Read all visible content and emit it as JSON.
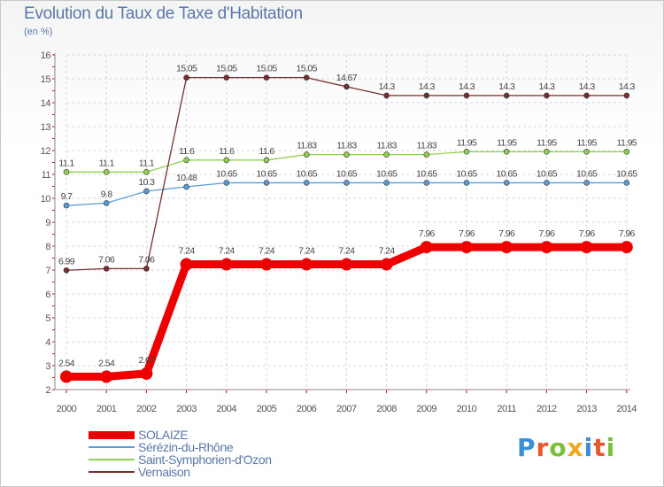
{
  "title": "Evolution du Taux de Taxe d'Habitation",
  "subtitle": "(en %)",
  "brand": {
    "letters": [
      {
        "ch": "P",
        "color": "#3a8fd6"
      },
      {
        "ch": "r",
        "color": "#e8562b"
      },
      {
        "ch": "o",
        "color": "#7cbf3a"
      },
      {
        "ch": "x",
        "color": "#f2a81d"
      },
      {
        "ch": "i",
        "color": "#3a8fd6"
      },
      {
        "ch": "t",
        "color": "#e8562b"
      },
      {
        "ch": "i",
        "color": "#7cbf3a"
      }
    ]
  },
  "chart_data": {
    "type": "line",
    "title": "Evolution du Taux de Taxe d'Habitation",
    "ylabel": "(en %)",
    "xlabel": "",
    "ylim": [
      2,
      16
    ],
    "yticks": [
      2,
      3,
      4,
      5,
      6,
      7,
      8,
      9,
      10,
      11,
      12,
      13,
      14,
      15,
      16
    ],
    "categories": [
      "2000",
      "2001",
      "2002",
      "2003",
      "2004",
      "2005",
      "2006",
      "2007",
      "2008",
      "2009",
      "2010",
      "2011",
      "2012",
      "2013",
      "2014"
    ],
    "grid": true,
    "legend_position": "bottom-left",
    "series": [
      {
        "name": "SOLAIZE",
        "color": "#ee0000",
        "style": "thick",
        "values": [
          2.54,
          2.54,
          2.67,
          7.24,
          7.24,
          7.24,
          7.24,
          7.24,
          7.24,
          7.96,
          7.96,
          7.96,
          7.96,
          7.96,
          7.96
        ],
        "labels": [
          "2.54",
          "2.54",
          "2.67",
          "7.24",
          "7.24",
          "7.24",
          "7.24",
          "7.24",
          "7.24",
          "7.96",
          "7.96",
          "7.96",
          "7.96",
          "7.96",
          "7.96"
        ]
      },
      {
        "name": "Sérézin-du-Rhône",
        "color": "#5b9bd5",
        "style": "thin",
        "values": [
          9.7,
          9.8,
          10.3,
          10.48,
          10.65,
          10.65,
          10.65,
          10.65,
          10.65,
          10.65,
          10.65,
          10.65,
          10.65,
          10.65,
          10.65
        ],
        "labels": [
          "9.7",
          "9.8",
          "10.3",
          "10.48",
          "10.65",
          "10.65",
          "10.65",
          "10.65",
          "10.65",
          "10.65",
          "10.65",
          "10.65",
          "10.65",
          "10.65",
          "10.65"
        ]
      },
      {
        "name": "Saint-Symphorien-d'Ozon",
        "color": "#8fd14f",
        "style": "thin",
        "values": [
          11.1,
          11.1,
          11.1,
          11.6,
          11.6,
          11.6,
          11.83,
          11.83,
          11.83,
          11.83,
          11.95,
          11.95,
          11.95,
          11.95,
          11.95
        ],
        "labels": [
          "11.1",
          "11.1",
          "11.1",
          "11.6",
          "11.6",
          "11.6",
          "11.83",
          "11.83",
          "11.83",
          "11.83",
          "11.95",
          "11.95",
          "11.95",
          "11.95",
          "11.95"
        ]
      },
      {
        "name": "Vernaison",
        "color": "#7a2e2e",
        "style": "thin",
        "values": [
          6.99,
          7.06,
          7.06,
          15.05,
          15.05,
          15.05,
          15.05,
          14.67,
          14.3,
          14.3,
          14.3,
          14.3,
          14.3,
          14.3,
          14.3
        ],
        "labels": [
          "6.99",
          "7.06",
          "7.06",
          "15.05",
          "15.05",
          "15.05",
          "15.05",
          "14.67",
          "14.3",
          "14.3",
          "14.3",
          "14.3",
          "14.3",
          "14.3",
          "14.3"
        ]
      }
    ]
  }
}
